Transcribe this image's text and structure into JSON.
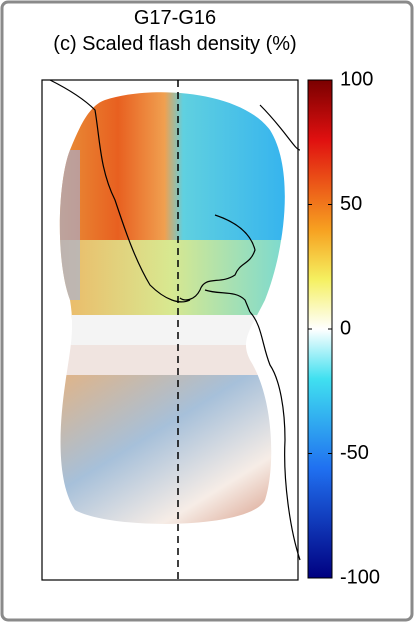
{
  "title": "G17-G16",
  "subtitle": "(c) Scaled flash density (%)",
  "colorbar": {
    "lim": [
      -100,
      100
    ],
    "ticks": [
      -100,
      -50,
      0,
      50,
      100
    ]
  }
}
